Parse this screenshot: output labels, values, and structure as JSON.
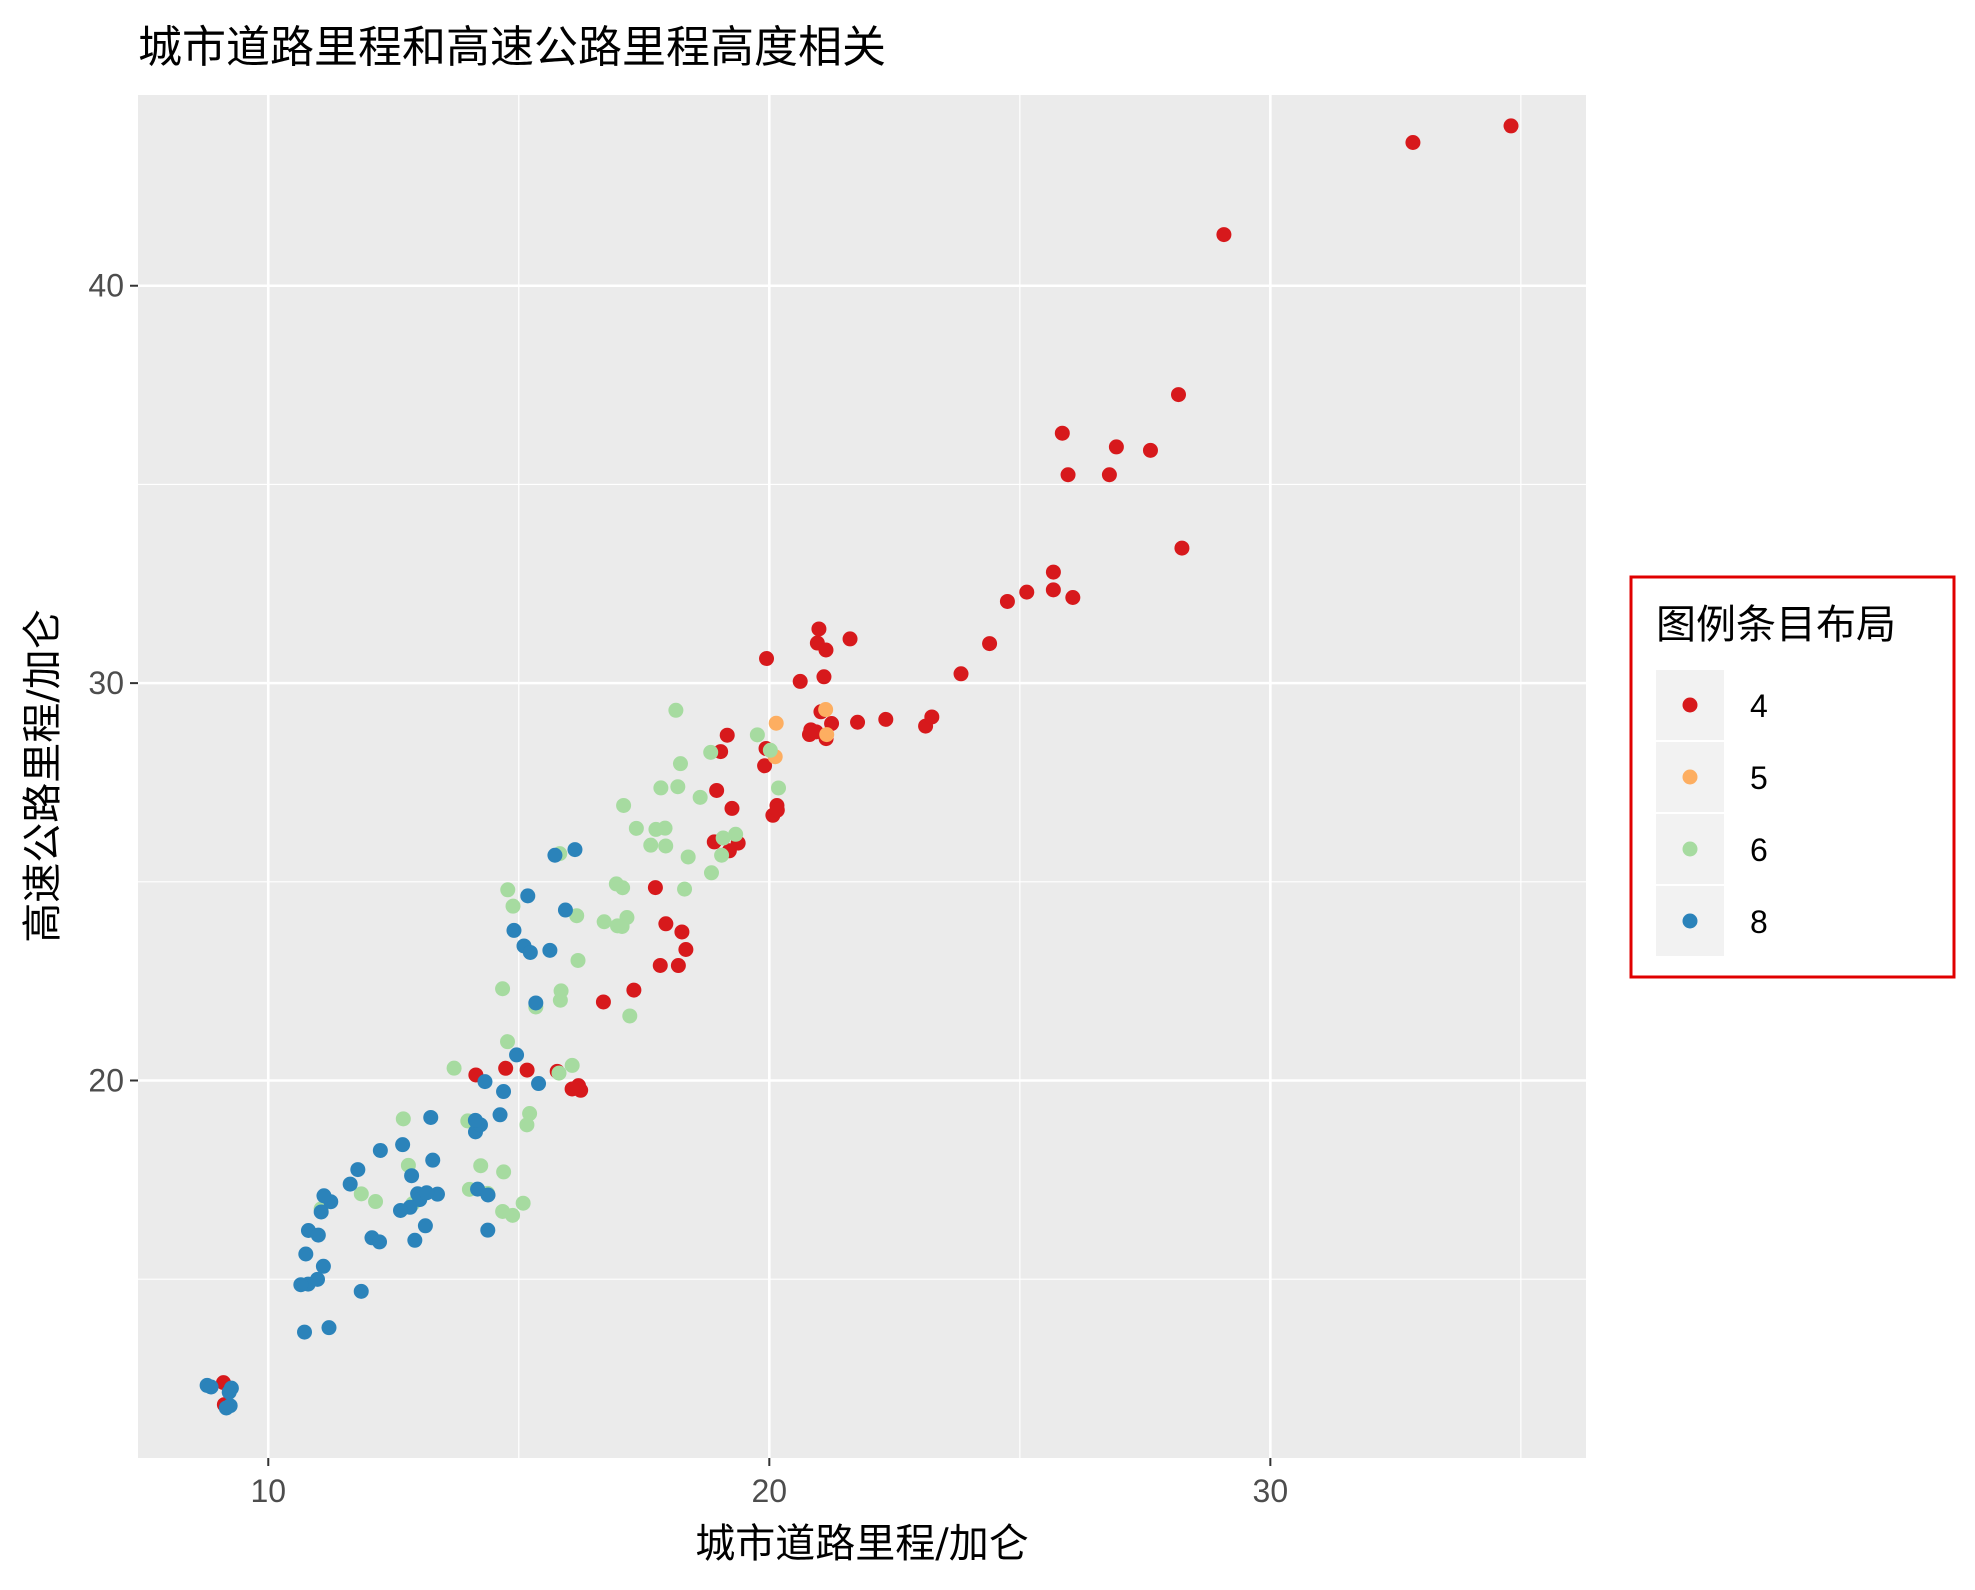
{
  "chart_data": {
    "type": "scatter",
    "title": "城市道路里程和高速公路里程高度相关",
    "xlabel": "城市道路里程/加仑",
    "ylabel": "高速公路里程/加仑",
    "xlim": [
      7.4,
      36.3
    ],
    "ylim": [
      10.5,
      44.8
    ],
    "x_ticks": [
      10,
      20,
      30
    ],
    "y_ticks": [
      20,
      30,
      40
    ],
    "grid": true,
    "legend": {
      "title": "图例条目布局",
      "position": "right"
    },
    "series": [
      {
        "name": "4",
        "color": "#d7191c",
        "points": [
          [
            9,
            12
          ],
          [
            9,
            12
          ],
          [
            14,
            20
          ],
          [
            15,
            20
          ],
          [
            15,
            20
          ],
          [
            16,
            20
          ],
          [
            16,
            20
          ],
          [
            16,
            20
          ],
          [
            16,
            20
          ],
          [
            17,
            22
          ],
          [
            17,
            22
          ],
          [
            18,
            23
          ],
          [
            18,
            23
          ],
          [
            18,
            23
          ],
          [
            18,
            24
          ],
          [
            18,
            24
          ],
          [
            18,
            25
          ],
          [
            19,
            26
          ],
          [
            19,
            26
          ],
          [
            19,
            26
          ],
          [
            19,
            27
          ],
          [
            19,
            27
          ],
          [
            19,
            28
          ],
          [
            19,
            29
          ],
          [
            20,
            27
          ],
          [
            20,
            27
          ],
          [
            20,
            27
          ],
          [
            20,
            28
          ],
          [
            20,
            28
          ],
          [
            20,
            31
          ],
          [
            21,
            29
          ],
          [
            21,
            29
          ],
          [
            21,
            29
          ],
          [
            21,
            29
          ],
          [
            21,
            29
          ],
          [
            21,
            29
          ],
          [
            21,
            30
          ],
          [
            21,
            30
          ],
          [
            21,
            31
          ],
          [
            21,
            31
          ],
          [
            21,
            31
          ],
          [
            22,
            29
          ],
          [
            22,
            29
          ],
          [
            22,
            31
          ],
          [
            23,
            29
          ],
          [
            23,
            29
          ],
          [
            24,
            30
          ],
          [
            24,
            31
          ],
          [
            25,
            32
          ],
          [
            25,
            32
          ],
          [
            26,
            32
          ],
          [
            26,
            32
          ],
          [
            26,
            33
          ],
          [
            26,
            35
          ],
          [
            26,
            36
          ],
          [
            27,
            35
          ],
          [
            27,
            36
          ],
          [
            28,
            36
          ],
          [
            28,
            37
          ],
          [
            28,
            33
          ],
          [
            29,
            41
          ],
          [
            33,
            44
          ],
          [
            35,
            44
          ]
        ]
      },
      {
        "name": "5",
        "color": "#fdae61",
        "points": [
          [
            20,
            28
          ],
          [
            20,
            29
          ],
          [
            21,
            29
          ],
          [
            21,
            29
          ]
        ]
      },
      {
        "name": "6",
        "color": "#a6dba0",
        "points": [
          [
            11,
            17
          ],
          [
            12,
            17
          ],
          [
            12,
            17
          ],
          [
            13,
            17
          ],
          [
            13,
            18
          ],
          [
            13,
            19
          ],
          [
            14,
            17
          ],
          [
            14,
            17
          ],
          [
            14,
            18
          ],
          [
            14,
            19
          ],
          [
            14,
            20
          ],
          [
            15,
            17
          ],
          [
            15,
            17
          ],
          [
            15,
            17
          ],
          [
            15,
            18
          ],
          [
            15,
            19
          ],
          [
            15,
            19
          ],
          [
            15,
            21
          ],
          [
            15,
            22
          ],
          [
            15,
            22
          ],
          [
            15,
            24
          ],
          [
            15,
            25
          ],
          [
            16,
            20
          ],
          [
            16,
            20
          ],
          [
            16,
            22
          ],
          [
            16,
            22
          ],
          [
            16,
            23
          ],
          [
            16,
            24
          ],
          [
            16,
            26
          ],
          [
            17,
            22
          ],
          [
            17,
            24
          ],
          [
            17,
            24
          ],
          [
            17,
            24
          ],
          [
            17,
            24
          ],
          [
            17,
            25
          ],
          [
            17,
            25
          ],
          [
            17,
            26
          ],
          [
            17,
            27
          ],
          [
            18,
            25
          ],
          [
            18,
            26
          ],
          [
            18,
            26
          ],
          [
            18,
            26
          ],
          [
            18,
            26
          ],
          [
            18,
            26
          ],
          [
            18,
            27
          ],
          [
            18,
            27
          ],
          [
            18,
            28
          ],
          [
            18,
            29
          ],
          [
            19,
            25
          ],
          [
            19,
            26
          ],
          [
            19,
            26
          ],
          [
            19,
            26
          ],
          [
            19,
            27
          ],
          [
            19,
            28
          ],
          [
            20,
            27
          ],
          [
            20,
            28
          ],
          [
            20,
            29
          ]
        ]
      },
      {
        "name": "8",
        "color": "#2b83ba",
        "points": [
          [
            9,
            12
          ],
          [
            9,
            12
          ],
          [
            9,
            12
          ],
          [
            9,
            12
          ],
          [
            9,
            12
          ],
          [
            9,
            12
          ],
          [
            11,
            14
          ],
          [
            11,
            14
          ],
          [
            11,
            15
          ],
          [
            11,
            15
          ],
          [
            11,
            15
          ],
          [
            11,
            15
          ],
          [
            11,
            16
          ],
          [
            11,
            16
          ],
          [
            11,
            16
          ],
          [
            11,
            17
          ],
          [
            11,
            17
          ],
          [
            11,
            17
          ],
          [
            12,
            15
          ],
          [
            12,
            16
          ],
          [
            12,
            16
          ],
          [
            12,
            17
          ],
          [
            12,
            18
          ],
          [
            12,
            18
          ],
          [
            13,
            16
          ],
          [
            13,
            16
          ],
          [
            13,
            17
          ],
          [
            13,
            17
          ],
          [
            13,
            17
          ],
          [
            13,
            17
          ],
          [
            13,
            17
          ],
          [
            13,
            17
          ],
          [
            13,
            18
          ],
          [
            13,
            18
          ],
          [
            13,
            18
          ],
          [
            13,
            19
          ],
          [
            14,
            16
          ],
          [
            14,
            17
          ],
          [
            14,
            17
          ],
          [
            14,
            19
          ],
          [
            14,
            19
          ],
          [
            14,
            19
          ],
          [
            14,
            20
          ],
          [
            15,
            19
          ],
          [
            15,
            20
          ],
          [
            15,
            20
          ],
          [
            15,
            21
          ],
          [
            15,
            22
          ],
          [
            15,
            23
          ],
          [
            15,
            23
          ],
          [
            15,
            24
          ],
          [
            15,
            25
          ],
          [
            16,
            23
          ],
          [
            16,
            24
          ],
          [
            16,
            26
          ],
          [
            16,
            26
          ]
        ]
      }
    ]
  }
}
